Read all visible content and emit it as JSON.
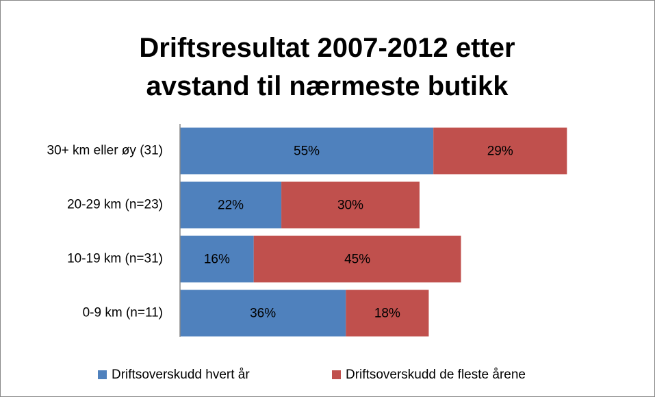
{
  "chart_data": {
    "type": "stacked_barh",
    "title": "Driftsresultat 2007-2012 etter avstand til nærmeste butikk",
    "categories": [
      "30+ km eller øy (31)",
      "20-29 km (n=23)",
      "10-19 km (n=31)",
      "0-9 km (n=11)"
    ],
    "series": [
      {
        "name": "Driftsoverskudd hvert år",
        "color": "#4f81bd",
        "values": [
          55,
          22,
          16,
          36
        ],
        "value_labels": [
          "55%",
          "22%",
          "16%",
          "36%"
        ]
      },
      {
        "name": "Driftsoverskudd de fleste årene",
        "color": "#c0504d",
        "values": [
          29,
          30,
          45,
          18
        ],
        "value_labels": [
          "29%",
          "30%",
          "45%",
          "18%"
        ]
      }
    ],
    "xlim": [
      0,
      100
    ],
    "legend": "bottom"
  }
}
